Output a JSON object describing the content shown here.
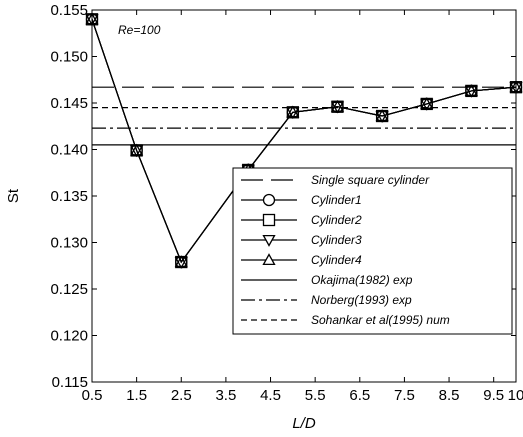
{
  "chart_data": {
    "type": "line",
    "annotation": "Re=100",
    "x_label": "L/D",
    "y_label": "St",
    "xlim": [
      0.5,
      10
    ],
    "ylim": [
      0.115,
      0.155
    ],
    "xticks": [
      0.5,
      1.5,
      2.5,
      3.5,
      4.5,
      5.5,
      6.5,
      7.5,
      8.5,
      9.5,
      10
    ],
    "yticks": [
      {
        "value": 0.115,
        "label": "0.115"
      },
      {
        "value": 0.12,
        "label": "0.120"
      },
      {
        "value": 0.125,
        "label": "0.125"
      },
      {
        "value": 0.13,
        "label": "0.130"
      },
      {
        "value": 0.135,
        "label": "0.135"
      },
      {
        "value": 0.14,
        "label": "0.140"
      },
      {
        "value": 0.145,
        "label": "0.145"
      },
      {
        "value": 0.15,
        "label": "0.150"
      },
      {
        "value": 0.155,
        "label": "0.155"
      }
    ],
    "x": [
      0.5,
      1.5,
      2.5,
      4,
      5,
      6,
      7,
      8,
      9,
      10
    ],
    "series": [
      {
        "name": "Single square cylinder",
        "kind": "hline",
        "value": 0.1467,
        "dash": "22 8",
        "color": "#000000"
      },
      {
        "name": "Cylinder1",
        "kind": "line",
        "marker": "circle",
        "color": "#000000",
        "values": [
          0.154,
          0.1399,
          0.1279,
          0.1378,
          0.144,
          0.1446,
          0.1436,
          0.1449,
          0.1463,
          0.1467
        ]
      },
      {
        "name": "Cylinder2",
        "kind": "line",
        "marker": "square",
        "color": "#000000",
        "values": [
          0.154,
          0.1399,
          0.1279,
          0.1378,
          0.144,
          0.1446,
          0.1436,
          0.1449,
          0.1463,
          0.1467
        ]
      },
      {
        "name": "Cylinder3",
        "kind": "line",
        "marker": "triangle-down",
        "color": "#000000",
        "values": [
          0.154,
          0.1399,
          0.1279,
          0.1378,
          0.144,
          0.1446,
          0.1436,
          0.1449,
          0.1463,
          0.1467
        ]
      },
      {
        "name": "Cylinder4",
        "kind": "line",
        "marker": "triangle-up",
        "color": "#000000",
        "values": [
          0.154,
          0.1399,
          0.1279,
          0.1378,
          0.144,
          0.1446,
          0.1436,
          0.1449,
          0.1463,
          0.1467
        ]
      },
      {
        "name": "Okajima(1982) exp",
        "kind": "hline",
        "value": 0.1405,
        "dash": "none",
        "color": "#000000"
      },
      {
        "name": "Norberg(1993) exp",
        "kind": "hline",
        "value": 0.1423,
        "dash": "14 4 3 4",
        "color": "#000000"
      },
      {
        "name": "Sohankar et al(1995) num",
        "kind": "hline",
        "value": 0.1445,
        "dash": "6 4",
        "color": "#000000"
      }
    ]
  }
}
